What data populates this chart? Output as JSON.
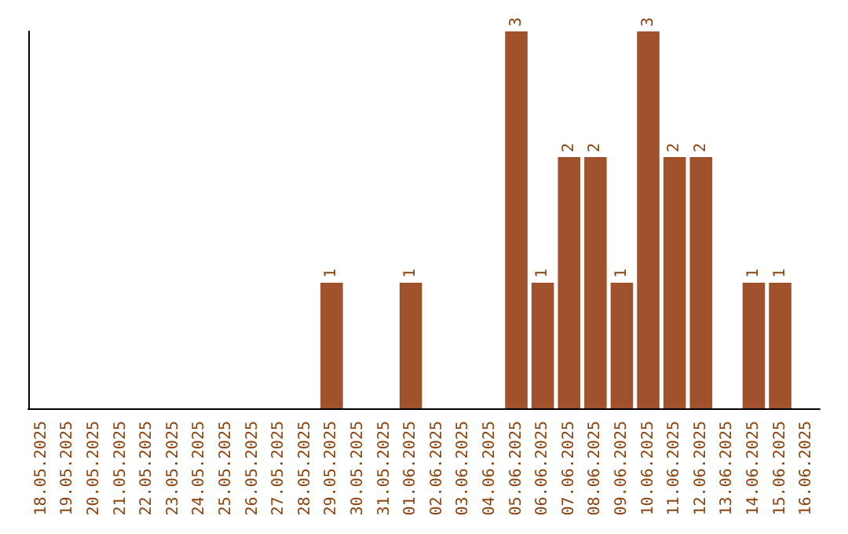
{
  "chart_data": {
    "type": "bar",
    "categories": [
      "18.05.2025",
      "19.05.2025",
      "20.05.2025",
      "21.05.2025",
      "22.05.2025",
      "23.05.2025",
      "24.05.2025",
      "25.05.2025",
      "26.05.2025",
      "27.05.2025",
      "28.05.2025",
      "29.05.2025",
      "30.05.2025",
      "31.05.2025",
      "01.06.2025",
      "02.06.2025",
      "03.06.2025",
      "04.06.2025",
      "05.06.2025",
      "06.06.2025",
      "07.06.2025",
      "08.06.2025",
      "09.06.2025",
      "10.06.2025",
      "11.06.2025",
      "12.06.2025",
      "13.06.2025",
      "14.06.2025",
      "15.06.2025",
      "16.06.2025"
    ],
    "values": [
      0,
      0,
      0,
      0,
      0,
      0,
      0,
      0,
      0,
      0,
      0,
      1,
      0,
      0,
      1,
      0,
      0,
      0,
      3,
      1,
      2,
      2,
      1,
      3,
      2,
      2,
      0,
      1,
      1,
      0
    ],
    "value_labels": [
      null,
      null,
      null,
      null,
      null,
      null,
      null,
      null,
      null,
      null,
      null,
      "1",
      null,
      null,
      "1",
      null,
      null,
      null,
      "3",
      "1",
      "2",
      "2",
      "1",
      "3",
      "2",
      "2",
      null,
      "1",
      "1",
      null
    ],
    "color": "#a0522d",
    "tick_labels": "x"
  }
}
